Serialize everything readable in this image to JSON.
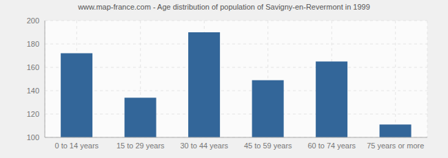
{
  "chart_data": {
    "type": "bar",
    "title": "www.map-france.com - Age distribution of population of Savigny-en-Revermont in 1999",
    "categories": [
      "0 to 14 years",
      "15 to 29 years",
      "30 to 44 years",
      "45 to 59 years",
      "60 to 74 years",
      "75 years or more"
    ],
    "values": [
      172,
      134,
      190,
      149,
      165,
      111
    ],
    "color": "#336699",
    "ylim": [
      100,
      200
    ],
    "yticks": [
      100,
      120,
      140,
      160,
      180,
      200
    ],
    "grid": true
  }
}
